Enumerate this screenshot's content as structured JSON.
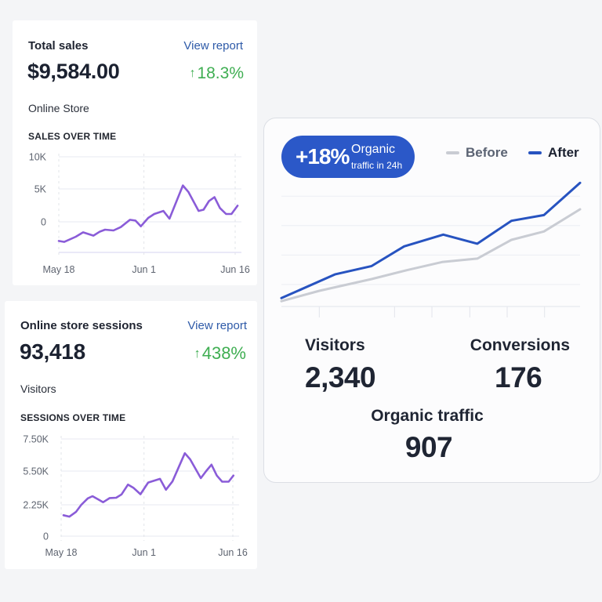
{
  "colors": {
    "page_bg": "#f4f5f7",
    "link": "#2e5aa8",
    "positive": "#3fae52",
    "sales_line": "#8a5cd8",
    "badge_bg": "#2b58c8",
    "before_line": "#c9ccd3",
    "after_line": "#2753c0"
  },
  "sales_card": {
    "title": "Total sales",
    "link": "View report",
    "value": "$9,584.00",
    "delta_arrow": "↑",
    "delta": "18.3%",
    "subtitle": "Online Store",
    "section": "SALES OVER TIME"
  },
  "sessions_card": {
    "title": "Online store sessions",
    "link": "View report",
    "value": "93,418",
    "delta_arrow": "↑",
    "delta": "438%",
    "subtitle": "Visitors",
    "section": "SESSIONS OVER TIME"
  },
  "organic_card": {
    "badge_value": "+18%",
    "badge_line1": "Organic",
    "badge_line2": "traffic in 24h",
    "legend_before": "Before",
    "legend_after": "After",
    "stats": {
      "visitors_label": "Visitors",
      "visitors_value": "2,340",
      "conversions_label": "Conversions",
      "conversions_value": "176",
      "organic_label": "Organic traffic",
      "organic_value": "907"
    }
  },
  "chart_data": [
    {
      "type": "line",
      "title": "SALES OVER TIME",
      "xlabel": "",
      "ylabel": "",
      "x_tick_labels": [
        "May 18",
        "Jun 1",
        "Jun 16"
      ],
      "x_tick_days": [
        0,
        14,
        29
      ],
      "y_tick_labels": [
        "10K",
        "5K",
        "0"
      ],
      "y_tick_values": [
        10000,
        5000,
        0
      ],
      "ylim": [
        -4700,
        10000
      ],
      "xlim_days": [
        0,
        29
      ],
      "grid": true,
      "series": [
        {
          "name": "Sales",
          "x_days": [
            0,
            0.9,
            2.8,
            4,
            5.7,
            6.7,
            7.6,
            9,
            10.2,
            11.7,
            12.6,
            13.5,
            14.7,
            15.7,
            17.2,
            18.2,
            20.4,
            21.3,
            23,
            23.8,
            24.7,
            25.6,
            26.5,
            27.5,
            28.4,
            29.4
          ],
          "values": [
            -2900,
            -3050,
            -2260,
            -1590,
            -2100,
            -1510,
            -1190,
            -1310,
            -800,
            310,
            190,
            -680,
            590,
            1190,
            1660,
            480,
            5540,
            4550,
            1660,
            1850,
            3160,
            3750,
            2090,
            1190,
            1190,
            2450
          ]
        }
      ]
    },
    {
      "type": "line",
      "title": "SESSIONS OVER TIME",
      "xlabel": "",
      "ylabel": "",
      "x_tick_labels": [
        "May 18",
        "Jun 1",
        "Jun 16"
      ],
      "x_tick_days": [
        0,
        14,
        29
      ],
      "y_tick_labels": [
        "7.50K",
        "5.50K",
        "2.25K",
        "0"
      ],
      "y_tick_values": [
        7500,
        5500,
        2250,
        0
      ],
      "ylim": [
        0,
        7500
      ],
      "xlim_days": [
        0,
        29
      ],
      "grid": true,
      "series": [
        {
          "name": "Sessions",
          "x_days": [
            0.4,
            1.4,
            2.5,
            3.4,
            4.5,
            5.3,
            7.1,
            8.2,
            9.3,
            10.2,
            11.3,
            12.2,
            13.4,
            14.7,
            16.7,
            17.7,
            18.8,
            20.9,
            21.8,
            23.6,
            24.5,
            25.4,
            26.3,
            27.2,
            28.3,
            29.1
          ],
          "values": [
            1500,
            1400,
            1740,
            2250,
            2870,
            3080,
            2500,
            2900,
            2930,
            3250,
            4200,
            3900,
            3270,
            4400,
            4750,
            3700,
            4500,
            6610,
            6230,
            4820,
            5500,
            5900,
            5070,
            4480,
            4480,
            5070
          ]
        }
      ]
    },
    {
      "type": "line",
      "title": "",
      "xlabel": "",
      "ylabel": "",
      "ylim": [
        0,
        100
      ],
      "xlim": [
        0,
        100
      ],
      "grid": true,
      "legend": "top-right",
      "series": [
        {
          "name": "Before",
          "x": [
            0,
            12.7,
            30.2,
            42.4,
            53.8,
            65.6,
            77,
            87.9,
            100
          ],
          "values": [
            4.8,
            14.2,
            24.9,
            33.2,
            40.3,
            43.4,
            60.4,
            68,
            88.1
          ]
        },
        {
          "name": "After",
          "x": [
            0,
            17.9,
            30.2,
            41.1,
            54.2,
            65.6,
            77,
            87.9,
            100
          ],
          "values": [
            7.6,
            29.1,
            36.7,
            54.5,
            65.2,
            56.9,
            77.7,
            82.9,
            112.1
          ]
        }
      ]
    }
  ]
}
